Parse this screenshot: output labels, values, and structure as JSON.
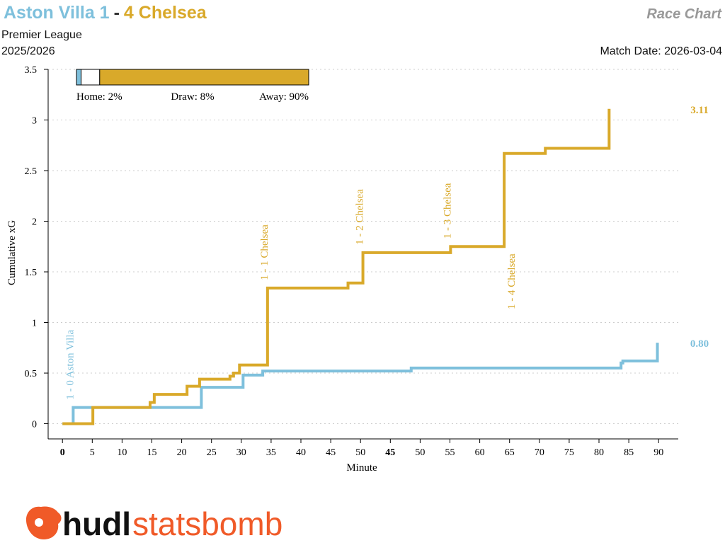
{
  "header": {
    "home_team": "Aston Villa 1",
    "separator": "-",
    "away_team": "4 Chelsea",
    "chart_name": "Race Chart",
    "competition": "Premier League",
    "season": "2025/2026",
    "match_date": "Match Date: 2026-03-04"
  },
  "chart_data": {
    "type": "line",
    "step": true,
    "xlabel": "Minute",
    "ylabel": "Cumulative xG",
    "xlim": [
      -2.4,
      103.3
    ],
    "ylim": [
      -0.15,
      3.5
    ],
    "xticks": [
      0,
      5,
      10,
      15,
      20,
      25,
      30,
      35,
      40,
      45,
      50,
      {
        "value": 55,
        "label": "45"
      },
      {
        "value": 60,
        "label": "50"
      },
      {
        "value": 65,
        "label": "55"
      },
      {
        "value": 70,
        "label": "60"
      },
      {
        "value": 75,
        "label": "65"
      },
      {
        "value": 80,
        "label": "70"
      },
      {
        "value": 85,
        "label": "75"
      },
      {
        "value": 90,
        "label": "80"
      },
      {
        "value": 95,
        "label": "85"
      },
      {
        "value": 100,
        "label": "90"
      }
    ],
    "half_starts": [
      0,
      55
    ],
    "yticks": [
      0,
      0.5,
      1,
      1.5,
      2,
      2.5,
      3,
      3.5
    ],
    "grid": true,
    "series": [
      {
        "name": "Aston Villa",
        "color": "#7ec0dc",
        "x": [
          0,
          1.8,
          23.3,
          30.3,
          33.6,
          58.5,
          93.7,
          94.0,
          99.8
        ],
        "values": [
          0,
          0.16,
          0.36,
          0.48,
          0.52,
          0.55,
          0.6,
          0.62,
          0.8
        ],
        "value_labels": [
          null,
          null,
          null,
          null,
          null,
          null,
          null,
          null,
          "0.80"
        ]
      },
      {
        "name": "Chelsea",
        "color": "#d9a92a",
        "x": [
          0,
          5.1,
          14.7,
          15.4,
          20.9,
          23.0,
          28.1,
          28.7,
          29.7,
          34.4,
          47.9,
          50.4,
          65.1,
          74.1,
          81.0,
          91.7
        ],
        "values": [
          0,
          0.16,
          0.21,
          0.29,
          0.37,
          0.44,
          0.47,
          0.5,
          0.58,
          1.34,
          1.39,
          1.69,
          1.75,
          2.67,
          2.72,
          3.11
        ],
        "value_labels": [
          null,
          null,
          null,
          null,
          null,
          null,
          null,
          null,
          null,
          null,
          null,
          null,
          null,
          null,
          null,
          "3.11"
        ]
      }
    ],
    "annotations": [
      {
        "text": "1 - 0 Aston Villa",
        "x": 1.8,
        "series": 0,
        "position": "above"
      },
      {
        "text": "1 - 1 Chelsea",
        "x": 34.4,
        "series": 1,
        "position": "above"
      },
      {
        "text": "1 - 2 Chelsea",
        "x": 50.4,
        "series": 1,
        "position": "above"
      },
      {
        "text": "1 - 3 Chelsea",
        "x": 65.1,
        "series": 1,
        "position": "above"
      },
      {
        "text": "1 - 4 Chelsea",
        "x": 74.1,
        "series": 1,
        "position": "below"
      }
    ],
    "win_probability": {
      "values": [
        2,
        8,
        90
      ],
      "labels": [
        "Home: 2%",
        "Draw: 8%",
        "Away: 90%"
      ],
      "colors": [
        "#7ec0dc",
        "#ffffff",
        "#d9a92a"
      ]
    }
  },
  "branding": {
    "name_bold": "hudl",
    "name_light": "statsbomb"
  }
}
